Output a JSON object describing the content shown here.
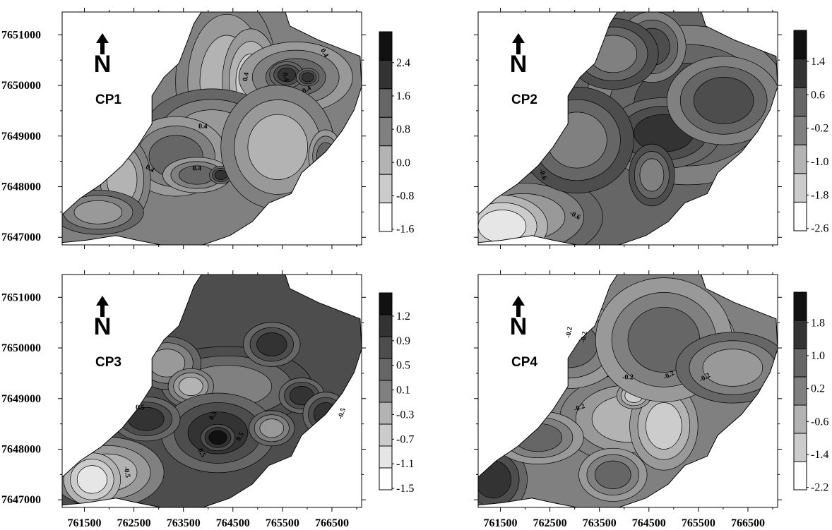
{
  "figure": {
    "x_ticks": [
      "761500",
      "762500",
      "763500",
      "764500",
      "765500",
      "766500"
    ],
    "y_ticks": [
      "7651000",
      "7650000",
      "7649000",
      "7648000",
      "7647000"
    ],
    "north_label": "N",
    "panels": [
      {
        "label": "CP1",
        "colorbar": [
          "2.4",
          "1.6",
          "0.8",
          "0.0",
          "-0.8",
          "-1.6"
        ],
        "contour_labels": [
          "0.4",
          "0.4",
          "0.4",
          "0.4",
          "0.4",
          "0.4",
          "0.4"
        ]
      },
      {
        "label": "CP2",
        "colorbar": [
          "1.4",
          "0.6",
          "-0.2",
          "-1.0",
          "-1.8",
          "-2.6"
        ],
        "contour_labels": [
          "-0.6",
          "-0.6"
        ]
      },
      {
        "label": "CP3",
        "colorbar": [
          "1.2",
          "0.9",
          "0.5",
          "0.1",
          "-0.3",
          "-0.7",
          "-1.1",
          "-1.5"
        ],
        "contour_labels": [
          "0.5",
          "0.5",
          "0.5",
          "-0.5",
          "0.5",
          "-0.5"
        ]
      },
      {
        "label": "CP4",
        "colorbar": [
          "1.8",
          "1.0",
          "0.2",
          "-0.6",
          "-1.4",
          "-2.2"
        ],
        "contour_labels": [
          "-0.2",
          "-0.2",
          "-0.2",
          "-0.2",
          "-0.2",
          "-0.2"
        ]
      }
    ]
  },
  "style": {
    "fills": [
      "#ffffff",
      "#e6e6e6",
      "#cccccc",
      "#b3b3b3",
      "#999999",
      "#808080",
      "#666666",
      "#4d4d4d",
      "#333333",
      "#111111"
    ],
    "line": "#000000"
  }
}
